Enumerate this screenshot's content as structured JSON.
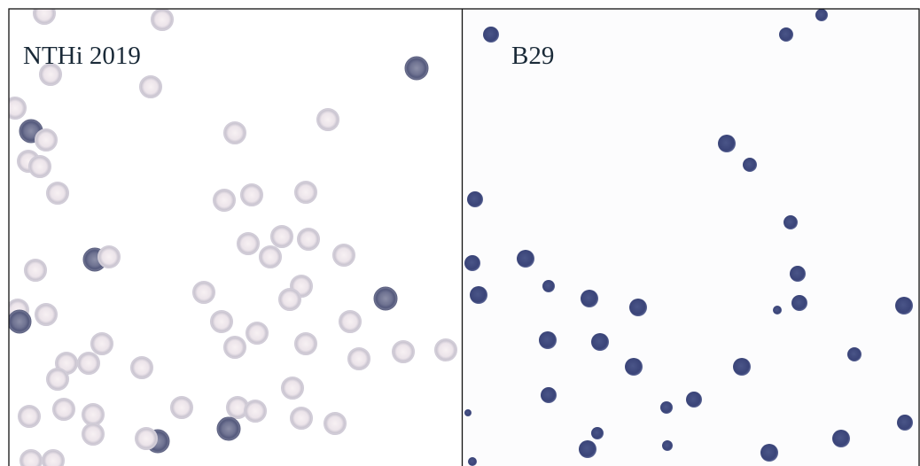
{
  "panels": [
    {
      "label": "NTHi 2019"
    },
    {
      "label": "B29"
    }
  ]
}
